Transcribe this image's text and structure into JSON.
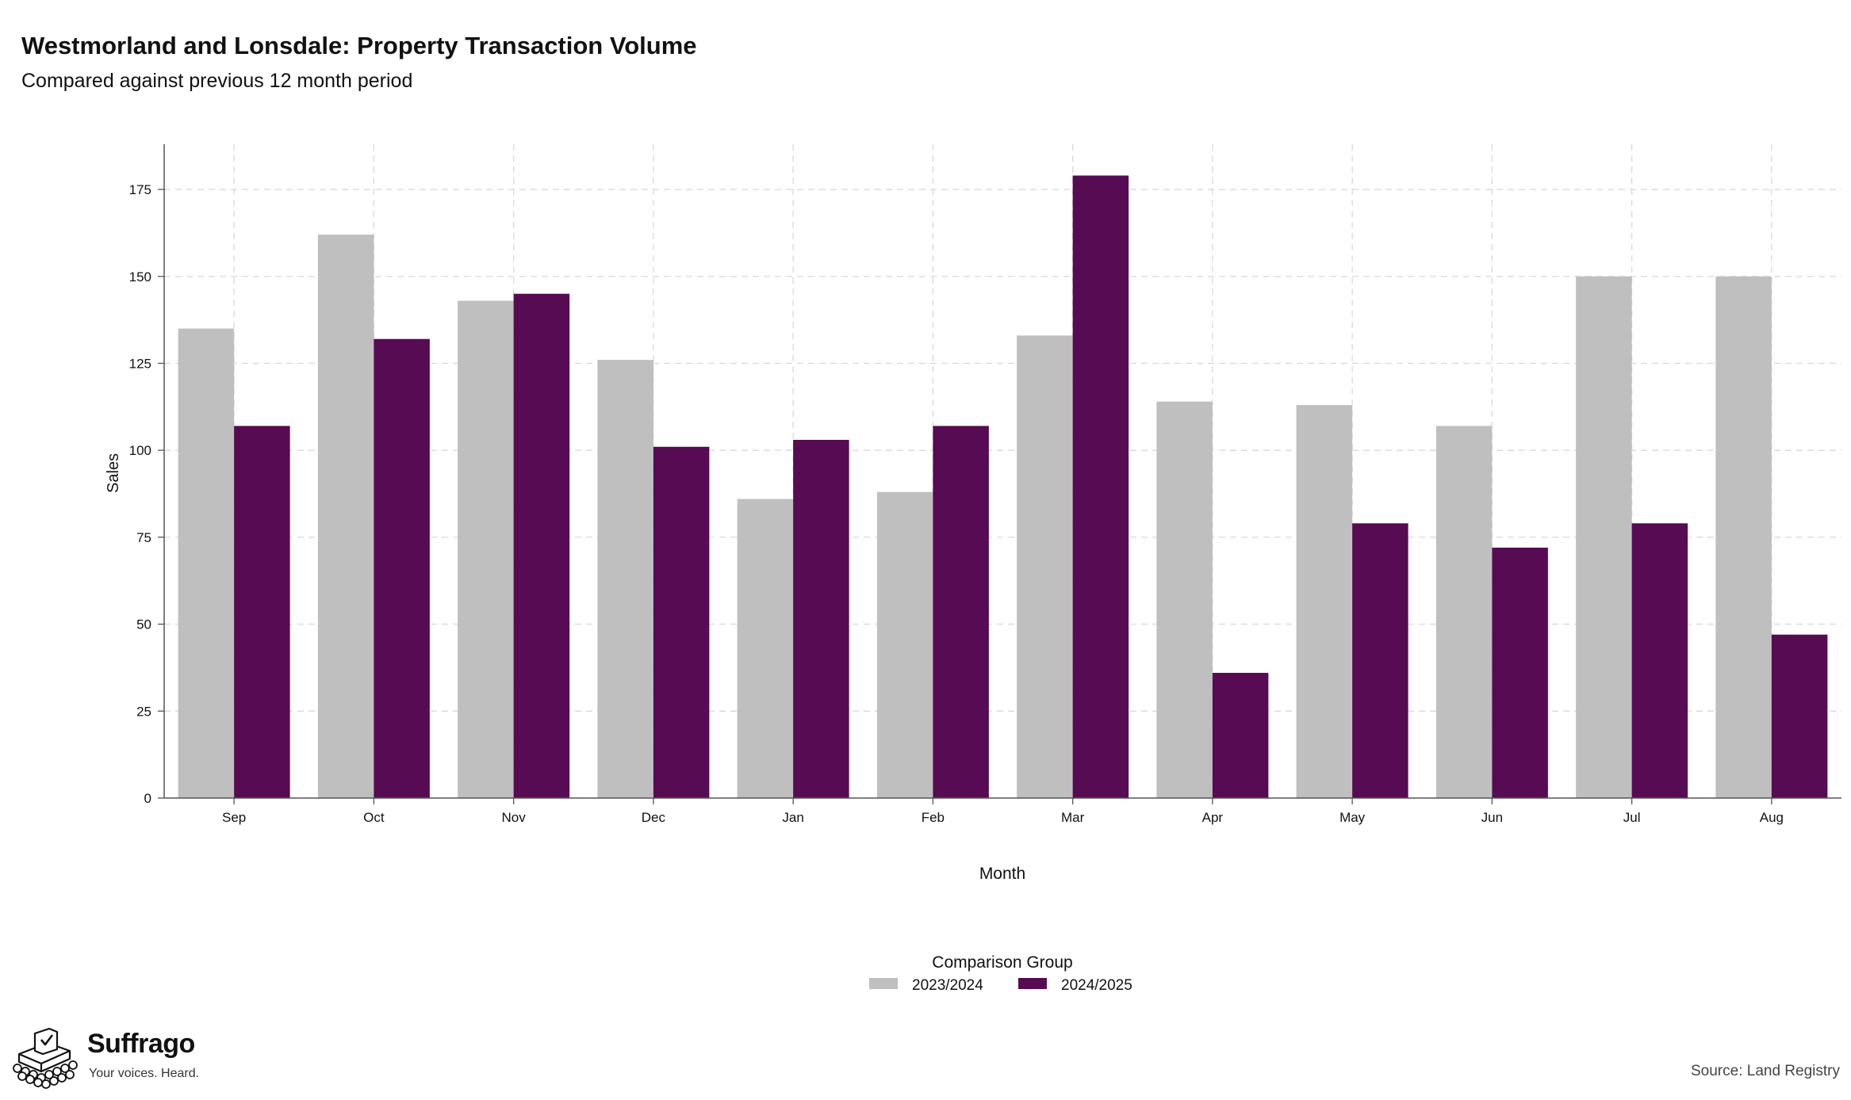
{
  "chart_data": {
    "type": "bar",
    "title": "Westmorland and Lonsdale: Property Transaction Volume",
    "subtitle": "Compared against previous 12 month period",
    "xlabel": "Month",
    "ylabel": "Sales",
    "categories": [
      "Sep",
      "Oct",
      "Nov",
      "Dec",
      "Jan",
      "Feb",
      "Mar",
      "Apr",
      "May",
      "Jun",
      "Jul",
      "Aug"
    ],
    "series": [
      {
        "name": "2023/2024",
        "color": "#bfbfbf",
        "values": [
          135,
          162,
          143,
          126,
          86,
          88,
          133,
          114,
          113,
          107,
          150,
          150
        ]
      },
      {
        "name": "2024/2025",
        "color": "#560b52",
        "values": [
          107,
          132,
          145,
          101,
          103,
          107,
          179,
          36,
          79,
          72,
          79,
          47
        ]
      }
    ],
    "ylim": [
      0,
      188
    ],
    "yticks": [
      0,
      25,
      50,
      75,
      100,
      125,
      150,
      175
    ],
    "grid": true,
    "legend": {
      "title": "Comparison Group",
      "position": "bottom"
    }
  },
  "branding": {
    "name": "Suffrago",
    "tagline": "Your voices. Heard."
  },
  "source": "Source: Land Registry"
}
